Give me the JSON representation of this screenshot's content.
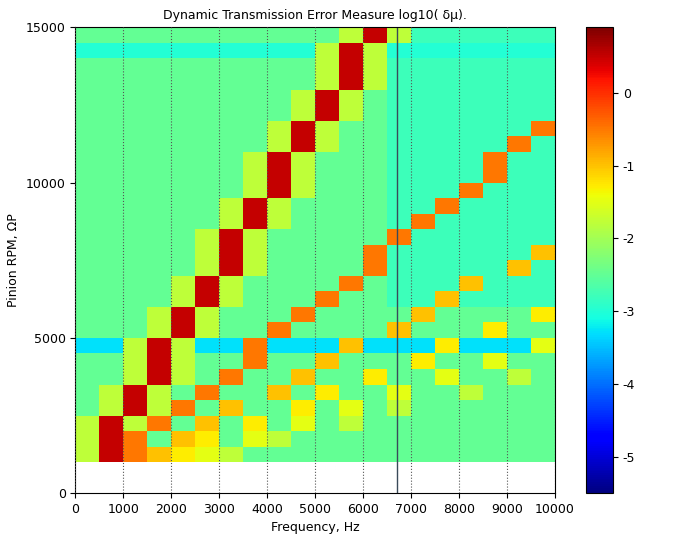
{
  "chart_data": {
    "type": "heatmap",
    "title": "Dynamic Transmission Error Measure log10( δμ).",
    "x_label": "Frequency, Hz",
    "y_label": "Pinion RPM, ΩP",
    "xlim": [
      0,
      10000
    ],
    "xticks": [
      0,
      1000,
      2000,
      3000,
      4000,
      5000,
      6000,
      7000,
      8000,
      9000,
      10000
    ],
    "ylim": [
      0,
      15000
    ],
    "yticks": [
      0,
      5000,
      10000,
      15000
    ],
    "grid": true,
    "vline": 6700,
    "colorbar_range": [
      -5.5,
      0.9
    ],
    "colorbar_ticks": [
      -5,
      -4,
      -3,
      -2,
      -1,
      0
    ],
    "x_edges": [
      0,
      500,
      1000,
      1500,
      2000,
      2500,
      3000,
      3500,
      4000,
      4500,
      5000,
      5500,
      6000,
      6500,
      7000,
      7500,
      8000,
      8500,
      9000,
      9500,
      10000
    ],
    "y_edges": [
      1000,
      1500,
      2000,
      2500,
      3000,
      3500,
      4000,
      4500,
      5000,
      5500,
      6000,
      6500,
      7000,
      7500,
      8000,
      8500,
      9000,
      9500,
      10000,
      10500,
      11000,
      11500,
      12000,
      12500,
      13000,
      13500,
      14000,
      14500,
      15000
    ],
    "cells": [
      [
        -1.8,
        0.5,
        -0.5,
        -1.0,
        -1.3,
        -1.5,
        -1.8,
        -2.5,
        -2.5,
        -2.5,
        -2.5,
        -2.5,
        -2.5,
        -2.5,
        -2.5,
        -2.5,
        -2.5,
        -2.5,
        -2.5,
        -2.5
      ],
      [
        -1.8,
        0.5,
        -0.5,
        -2.5,
        -1.0,
        -1.3,
        -2.5,
        -1.5,
        -1.8,
        -2.5,
        -2.5,
        -2.5,
        -2.5,
        -2.5,
        -2.5,
        -2.5,
        -2.5,
        -2.5,
        -2.5,
        -2.5
      ],
      [
        -1.8,
        0.5,
        -1.8,
        -0.5,
        -2.5,
        -1.0,
        -2.5,
        -1.3,
        -2.5,
        -1.5,
        -2.5,
        -1.8,
        -2.5,
        -2.5,
        -2.5,
        -2.5,
        -2.5,
        -2.5,
        -2.5,
        -2.5
      ],
      [
        -2.5,
        -1.8,
        0.5,
        -1.8,
        -0.5,
        -2.5,
        -1.0,
        -2.5,
        -2.5,
        -1.3,
        -2.5,
        -1.5,
        -2.5,
        -1.8,
        -2.5,
        -2.5,
        -2.5,
        -2.5,
        -2.5,
        -2.5
      ],
      [
        -2.5,
        -1.8,
        0.5,
        -1.8,
        -2.5,
        -0.5,
        -2.5,
        -2.5,
        -1.0,
        -2.5,
        -1.3,
        -2.5,
        -2.5,
        -1.5,
        -2.5,
        -2.5,
        -1.8,
        -2.5,
        -2.5,
        -2.5
      ],
      [
        -2.5,
        -2.5,
        -1.8,
        0.5,
        -1.8,
        -2.5,
        -0.5,
        -2.5,
        -2.5,
        -1.0,
        -2.5,
        -2.5,
        -1.3,
        -2.5,
        -2.5,
        -1.5,
        -2.5,
        -2.5,
        -1.8,
        -2.5
      ],
      [
        -2.5,
        -2.5,
        -1.8,
        0.5,
        -1.8,
        -2.5,
        -2.5,
        -0.5,
        -2.5,
        -2.5,
        -1.0,
        -2.5,
        -2.5,
        -2.5,
        -1.3,
        -2.5,
        -2.5,
        -1.5,
        -2.5,
        -2.5
      ],
      [
        -3.3,
        -3.3,
        -1.8,
        0.5,
        -1.8,
        -3.3,
        -3.3,
        -0.5,
        -3.3,
        -3.3,
        -3.3,
        -1.0,
        -3.3,
        -3.3,
        -3.3,
        -1.3,
        -3.3,
        -3.3,
        -3.3,
        -1.5
      ],
      [
        -2.5,
        -2.5,
        -2.5,
        -1.8,
        0.5,
        -1.8,
        -2.5,
        -2.5,
        -0.5,
        -2.5,
        -2.5,
        -2.5,
        -2.5,
        -1.0,
        -2.5,
        -2.5,
        -2.5,
        -1.3,
        -2.5,
        -2.5
      ],
      [
        -2.5,
        -2.5,
        -2.5,
        -1.8,
        0.5,
        -1.8,
        -2.5,
        -2.5,
        -2.5,
        -0.5,
        -2.5,
        -2.5,
        -2.5,
        -2.5,
        -1.0,
        -2.5,
        -2.5,
        -2.5,
        -2.5,
        -1.3
      ],
      [
        -2.5,
        -2.5,
        -2.5,
        -2.5,
        -1.8,
        0.5,
        -1.8,
        -2.5,
        -2.5,
        -2.5,
        -0.5,
        -2.5,
        -2.5,
        -2.8,
        -2.8,
        -1.0,
        -2.8,
        -2.8,
        -2.8,
        -2.8
      ],
      [
        -2.5,
        -2.5,
        -2.5,
        -2.5,
        -1.8,
        0.5,
        -1.8,
        -2.5,
        -2.5,
        -2.5,
        -2.5,
        -0.5,
        -2.5,
        -2.8,
        -2.8,
        -2.8,
        -1.0,
        -2.8,
        -2.8,
        -2.8
      ],
      [
        -2.5,
        -2.5,
        -2.5,
        -2.5,
        -2.5,
        -1.8,
        0.5,
        -1.8,
        -2.5,
        -2.5,
        -2.5,
        -2.5,
        -0.5,
        -2.8,
        -2.8,
        -2.8,
        -2.8,
        -2.8,
        -1.0,
        -2.8
      ],
      [
        -2.5,
        -2.5,
        -2.5,
        -2.5,
        -2.5,
        -1.8,
        0.5,
        -1.8,
        -2.5,
        -2.5,
        -2.5,
        -2.5,
        -0.5,
        -2.8,
        -2.8,
        -2.8,
        -2.8,
        -2.8,
        -2.8,
        -1.0
      ],
      [
        -2.5,
        -2.5,
        -2.5,
        -2.5,
        -2.5,
        -1.8,
        0.5,
        -1.8,
        -2.5,
        -2.5,
        -2.5,
        -2.5,
        -2.5,
        -0.5,
        -2.8,
        -2.8,
        -2.8,
        -2.8,
        -2.8,
        -2.8
      ],
      [
        -2.5,
        -2.5,
        -2.5,
        -2.5,
        -2.5,
        -2.5,
        -1.8,
        0.5,
        -1.8,
        -2.5,
        -2.5,
        -2.5,
        -2.5,
        -2.8,
        -0.5,
        -2.8,
        -2.8,
        -2.8,
        -2.8,
        -2.8
      ],
      [
        -2.5,
        -2.5,
        -2.5,
        -2.5,
        -2.5,
        -2.5,
        -1.8,
        0.5,
        -1.8,
        -2.5,
        -2.5,
        -2.5,
        -2.5,
        -2.8,
        -2.8,
        -0.5,
        -2.8,
        -2.8,
        -2.8,
        -2.8
      ],
      [
        -2.5,
        -2.5,
        -2.5,
        -2.5,
        -2.5,
        -2.5,
        -2.5,
        -1.8,
        0.5,
        -1.8,
        -2.5,
        -2.5,
        -2.5,
        -2.8,
        -2.8,
        -2.8,
        -0.5,
        -2.8,
        -2.8,
        -2.8
      ],
      [
        -2.5,
        -2.5,
        -2.5,
        -2.5,
        -2.5,
        -2.5,
        -2.5,
        -1.8,
        0.5,
        -1.8,
        -2.5,
        -2.5,
        -2.5,
        -2.8,
        -2.8,
        -2.8,
        -2.8,
        -0.5,
        -2.8,
        -2.8
      ],
      [
        -2.5,
        -2.5,
        -2.5,
        -2.5,
        -2.5,
        -2.5,
        -2.5,
        -1.8,
        0.5,
        -1.8,
        -2.5,
        -2.5,
        -2.5,
        -2.8,
        -2.8,
        -2.8,
        -2.8,
        -0.5,
        -2.8,
        -2.8
      ],
      [
        -2.5,
        -2.5,
        -2.5,
        -2.5,
        -2.5,
        -2.5,
        -2.5,
        -2.5,
        -1.8,
        0.5,
        -1.8,
        -2.5,
        -2.5,
        -2.8,
        -2.8,
        -2.8,
        -2.8,
        -2.8,
        -0.5,
        -2.8
      ],
      [
        -2.5,
        -2.5,
        -2.5,
        -2.5,
        -2.5,
        -2.5,
        -2.5,
        -2.5,
        -1.8,
        0.5,
        -1.8,
        -2.5,
        -2.5,
        -2.8,
        -2.8,
        -2.8,
        -2.8,
        -2.8,
        -2.8,
        -0.5
      ],
      [
        -2.5,
        -2.5,
        -2.5,
        -2.5,
        -2.5,
        -2.5,
        -2.5,
        -2.5,
        -2.5,
        -1.8,
        0.5,
        -1.8,
        -2.5,
        -2.8,
        -2.8,
        -2.8,
        -2.8,
        -2.8,
        -2.8,
        -2.8
      ],
      [
        -2.5,
        -2.5,
        -2.5,
        -2.5,
        -2.5,
        -2.5,
        -2.5,
        -2.5,
        -2.5,
        -1.8,
        0.5,
        -1.8,
        -2.5,
        -2.8,
        -2.8,
        -2.8,
        -2.8,
        -2.8,
        -2.8,
        -2.8
      ],
      [
        -2.5,
        -2.5,
        -2.5,
        -2.5,
        -2.5,
        -2.5,
        -2.5,
        -2.5,
        -2.5,
        -2.5,
        -1.8,
        0.5,
        -1.8,
        -2.8,
        -2.8,
        -2.8,
        -2.8,
        -2.8,
        -2.8,
        -2.8
      ],
      [
        -2.5,
        -2.5,
        -2.5,
        -2.5,
        -2.5,
        -2.5,
        -2.5,
        -2.5,
        -2.5,
        -2.5,
        -1.8,
        0.5,
        -1.8,
        -2.8,
        -2.8,
        -2.8,
        -2.8,
        -2.8,
        -2.8,
        -2.8
      ],
      [
        -3.0,
        -3.0,
        -3.0,
        -3.0,
        -3.0,
        -3.0,
        -3.0,
        -3.0,
        -3.0,
        -3.0,
        -1.8,
        0.5,
        -1.8,
        -3.0,
        -3.0,
        -3.0,
        -3.0,
        -3.0,
        -3.0,
        -3.0
      ],
      [
        -2.5,
        -2.5,
        -2.5,
        -2.5,
        -2.5,
        -2.5,
        -2.5,
        -2.5,
        -2.5,
        -2.5,
        -2.5,
        -1.8,
        0.5,
        -1.8,
        -2.8,
        -2.8,
        -2.8,
        -2.8,
        -2.8,
        -2.8
      ]
    ]
  }
}
